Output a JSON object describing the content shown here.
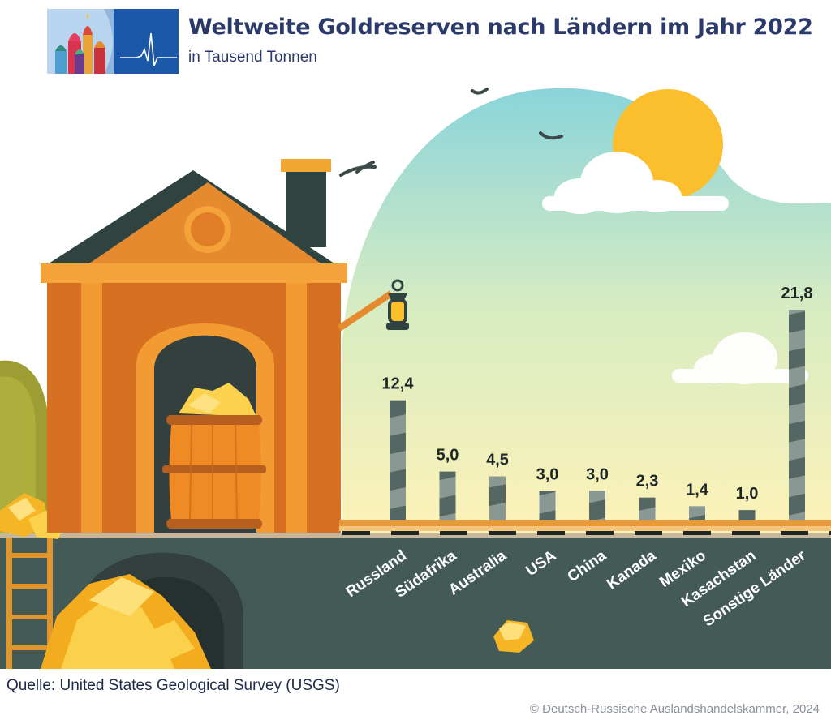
{
  "header": {
    "title": "Weltweite Goldreserven nach Ländern im Jahr 2022",
    "subtitle": "in Tausend Tonnen"
  },
  "footer": {
    "source": "Quelle: United States Geological Survey (USGS)",
    "copyright": "© Deutsch-Russische Auslandshandelskammer, 2024"
  },
  "colors": {
    "bar_dark": "#556763",
    "bar_light": "#8a9894",
    "ground": "#435a56",
    "title": "#2b3a6b",
    "sun": "#fbbf2e",
    "gold": "#f9c53c",
    "house": "#e07d26"
  },
  "chart_data": {
    "type": "bar",
    "title": "Weltweite Goldreserven nach Ländern im Jahr 2022",
    "subtitle": "in Tausend Tonnen",
    "categories": [
      "Russland",
      "Südafrika",
      "Australia",
      "USA",
      "China",
      "Kanada",
      "Mexiko",
      "Kasachstan",
      "Sonstige Länder"
    ],
    "values": [
      12.4,
      5.0,
      4.5,
      3.0,
      3.0,
      2.3,
      1.4,
      1.0,
      21.8
    ],
    "value_labels": [
      "12,4",
      "5,0",
      "4,5",
      "3,0",
      "3,0",
      "2,3",
      "1,4",
      "1,0",
      "21,8"
    ],
    "ylim": [
      0,
      21.8
    ],
    "grid": false,
    "legend": "none"
  }
}
